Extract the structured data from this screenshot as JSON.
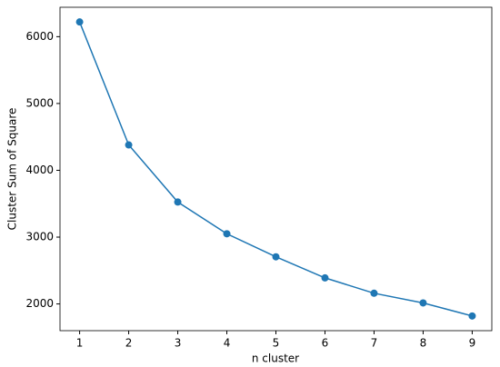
{
  "chart_data": {
    "type": "line",
    "x_label": "n cluster",
    "y_label": "Cluster Sum of Square",
    "x": [
      1,
      2,
      3,
      4,
      5,
      6,
      7,
      8,
      9
    ],
    "series": [
      {
        "color": "#1f77b4",
        "values": [
          6220,
          4380,
          3525,
          3050,
          2705,
          2390,
          2160,
          2015,
          1820
        ]
      }
    ],
    "xlim": [
      0.6,
      9.4
    ],
    "xticks": [
      1,
      2,
      3,
      4,
      5,
      6,
      7,
      8,
      9
    ],
    "ylim": [
      1600,
      6440
    ],
    "yticks": [
      2000,
      3000,
      4000,
      5000,
      6000
    ],
    "grid": false,
    "markers": true
  }
}
